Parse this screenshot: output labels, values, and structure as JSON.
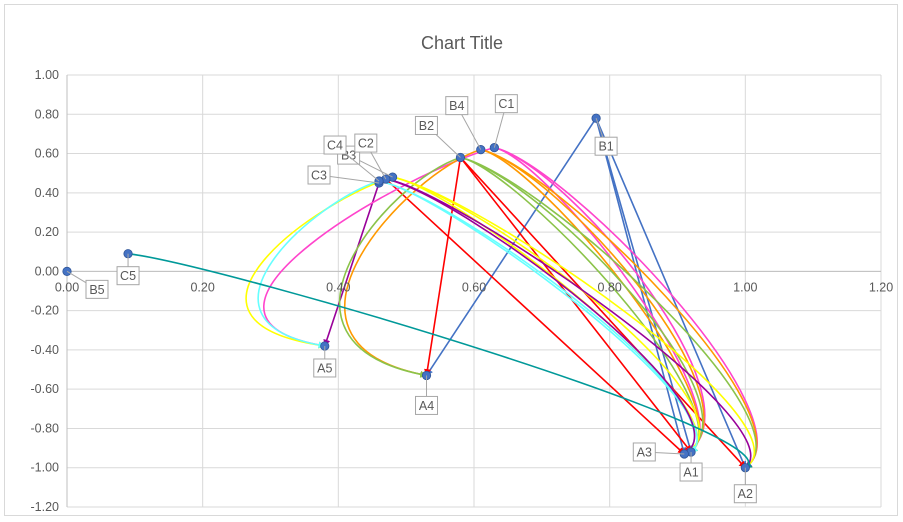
{
  "chart_data": {
    "type": "scatter",
    "title": "Chart Title",
    "xlabel": "",
    "ylabel": "",
    "xlim": [
      0,
      1.2
    ],
    "ylim": [
      -1.2,
      1.0
    ],
    "x_ticks": [
      "0.00",
      "0.20",
      "0.40",
      "0.60",
      "0.80",
      "1.00",
      "1.20"
    ],
    "y_ticks": [
      "1.00",
      "0.80",
      "0.60",
      "0.40",
      "0.20",
      "0.00",
      "-0.20",
      "-0.40",
      "-0.60",
      "-0.80",
      "-1.00",
      "-1.20"
    ],
    "grid": true,
    "marker_color": "#4472C4",
    "points": [
      {
        "label": "A1",
        "x": 0.92,
        "y": -0.92
      },
      {
        "label": "A2",
        "x": 1.0,
        "y": -1.0
      },
      {
        "label": "A3",
        "x": 0.91,
        "y": -0.93
      },
      {
        "label": "A4",
        "x": 0.53,
        "y": -0.53
      },
      {
        "label": "A5",
        "x": 0.38,
        "y": -0.38
      },
      {
        "label": "B1",
        "x": 0.78,
        "y": 0.78
      },
      {
        "label": "B2",
        "x": 0.58,
        "y": 0.58
      },
      {
        "label": "B3",
        "x": 0.48,
        "y": 0.48
      },
      {
        "label": "B4",
        "x": 0.61,
        "y": 0.62
      },
      {
        "label": "B5",
        "x": 0.0,
        "y": 0.0
      },
      {
        "label": "C1",
        "x": 0.63,
        "y": 0.63
      },
      {
        "label": "C2",
        "x": 0.47,
        "y": 0.47
      },
      {
        "label": "C3",
        "x": 0.46,
        "y": 0.45
      },
      {
        "label": "C4",
        "x": 0.46,
        "y": 0.46
      },
      {
        "label": "C5",
        "x": 0.09,
        "y": 0.09
      }
    ],
    "connectors": [
      {
        "from": "B1",
        "to": "A1",
        "color": "#4472C4",
        "shape": "straight"
      },
      {
        "from": "B1",
        "to": "A2",
        "color": "#4472C4",
        "shape": "straight"
      },
      {
        "from": "B1",
        "to": "A3",
        "color": "#4472C4",
        "shape": "straight"
      },
      {
        "from": "B1",
        "to": "A4",
        "color": "#4472C4",
        "shape": "straight"
      },
      {
        "from": "B2",
        "to": "A1",
        "color": "#FF0000",
        "shape": "straight"
      },
      {
        "from": "B2",
        "to": "A2",
        "color": "#FF0000",
        "shape": "straight"
      },
      {
        "from": "B2",
        "to": "A4",
        "color": "#FF0000",
        "shape": "straight"
      },
      {
        "from": "C2",
        "to": "A3",
        "color": "#FF0000",
        "shape": "straight"
      },
      {
        "from": "C3",
        "to": "A5",
        "color": "#990099",
        "shape": "straight"
      },
      {
        "from": "C1",
        "to": "A1",
        "color": "#FF44CC",
        "shape": "curve"
      },
      {
        "from": "C1",
        "to": "A2",
        "color": "#FF44CC",
        "shape": "curve"
      },
      {
        "from": "C1",
        "to": "A3",
        "color": "#FF44CC",
        "shape": "curve"
      },
      {
        "from": "C1",
        "to": "A5",
        "color": "#FF44CC",
        "shape": "curve"
      },
      {
        "from": "B4",
        "to": "A1",
        "color": "#FF9900",
        "shape": "curve"
      },
      {
        "from": "B4",
        "to": "A2",
        "color": "#FF9900",
        "shape": "curve"
      },
      {
        "from": "B4",
        "to": "A3",
        "color": "#FF9900",
        "shape": "curve"
      },
      {
        "from": "B4",
        "to": "A4",
        "color": "#FF9900",
        "shape": "curve"
      },
      {
        "from": "B2",
        "to": "A1",
        "color": "#8BC34A",
        "shape": "curve"
      },
      {
        "from": "B2",
        "to": "A2",
        "color": "#8BC34A",
        "shape": "curve"
      },
      {
        "from": "B2",
        "to": "A3",
        "color": "#8BC34A",
        "shape": "curve"
      },
      {
        "from": "B2",
        "to": "A4",
        "color": "#8BC34A",
        "shape": "curve"
      },
      {
        "from": "B3",
        "to": "A1",
        "color": "#FFFF00",
        "shape": "curve"
      },
      {
        "from": "B3",
        "to": "A2",
        "color": "#FFFF00",
        "shape": "curve"
      },
      {
        "from": "B3",
        "to": "A3",
        "color": "#FFFF00",
        "shape": "curve"
      },
      {
        "from": "B3",
        "to": "A5",
        "color": "#FFFF00",
        "shape": "curve"
      },
      {
        "from": "C4",
        "to": "A1",
        "color": "#66FFFF",
        "shape": "curve"
      },
      {
        "from": "C4",
        "to": "A3",
        "color": "#66FFFF",
        "shape": "curve"
      },
      {
        "from": "C4",
        "to": "A5",
        "color": "#66FFFF",
        "shape": "curve"
      },
      {
        "from": "C2",
        "to": "A2",
        "color": "#990099",
        "shape": "curve"
      },
      {
        "from": "C2",
        "to": "A3",
        "color": "#990099",
        "shape": "curve"
      },
      {
        "from": "C5",
        "to": "A2",
        "color": "#009999",
        "shape": "curve"
      }
    ]
  }
}
